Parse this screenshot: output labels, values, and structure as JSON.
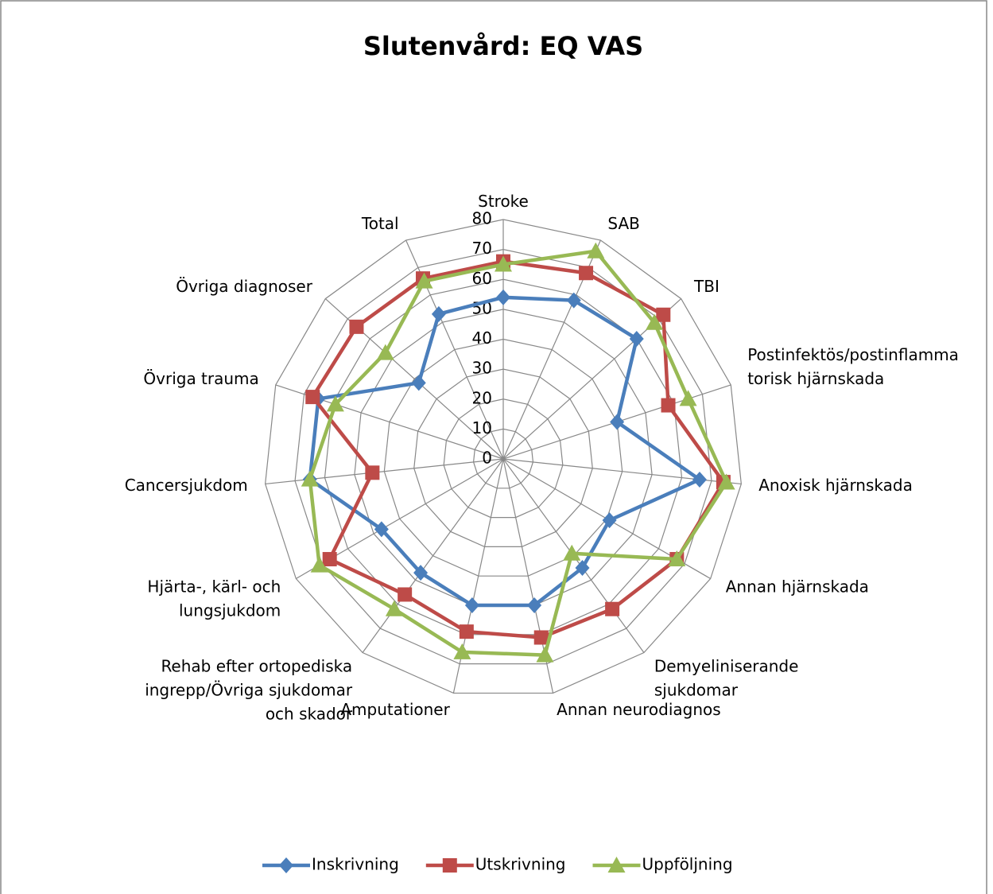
{
  "chart_data": {
    "type": "radar",
    "title": "Slutenvård: EQ VAS",
    "categories": [
      "Stroke",
      "SAB",
      "TBI",
      "Postinfektös/postinflamma\ntorisk hjärnskada",
      "Anoxisk hjärnskada",
      "Annan hjärnskada",
      "Demyeliniserande\nsjukdomar",
      "Annan neurodiagnos",
      "Amputationer",
      "Rehab efter ortopediska\ningrepp/Övriga sjukdomar\noch skador",
      "Hjärta-, kärl- och\nlungsjukdom",
      "Cancersjukdom",
      "Övriga trauma",
      "Övriga diagnoser",
      "Total"
    ],
    "series": [
      {
        "name": "Inskrivning",
        "color": "#4a7ebb",
        "marker": "diamond",
        "values": [
          54,
          58,
          60,
          40,
          66,
          41,
          45,
          50,
          50,
          47,
          47,
          65,
          65,
          38,
          53
        ]
      },
      {
        "name": "Utskrivning",
        "color": "#be4b48",
        "marker": "square",
        "values": [
          66,
          68,
          72,
          58,
          74,
          67,
          62,
          61,
          59,
          56,
          67,
          44,
          67,
          66,
          66
        ]
      },
      {
        "name": "Uppföljning",
        "color": "#98b954",
        "marker": "triangle",
        "values": [
          65,
          76,
          68,
          65,
          75,
          67,
          39,
          67,
          66,
          62,
          71,
          65,
          59,
          53,
          65
        ]
      }
    ],
    "ylim": [
      0,
      80
    ],
    "yticks": [
      0,
      10,
      20,
      30,
      40,
      50,
      60,
      70,
      80
    ],
    "grid": true,
    "legend": "bottom"
  }
}
